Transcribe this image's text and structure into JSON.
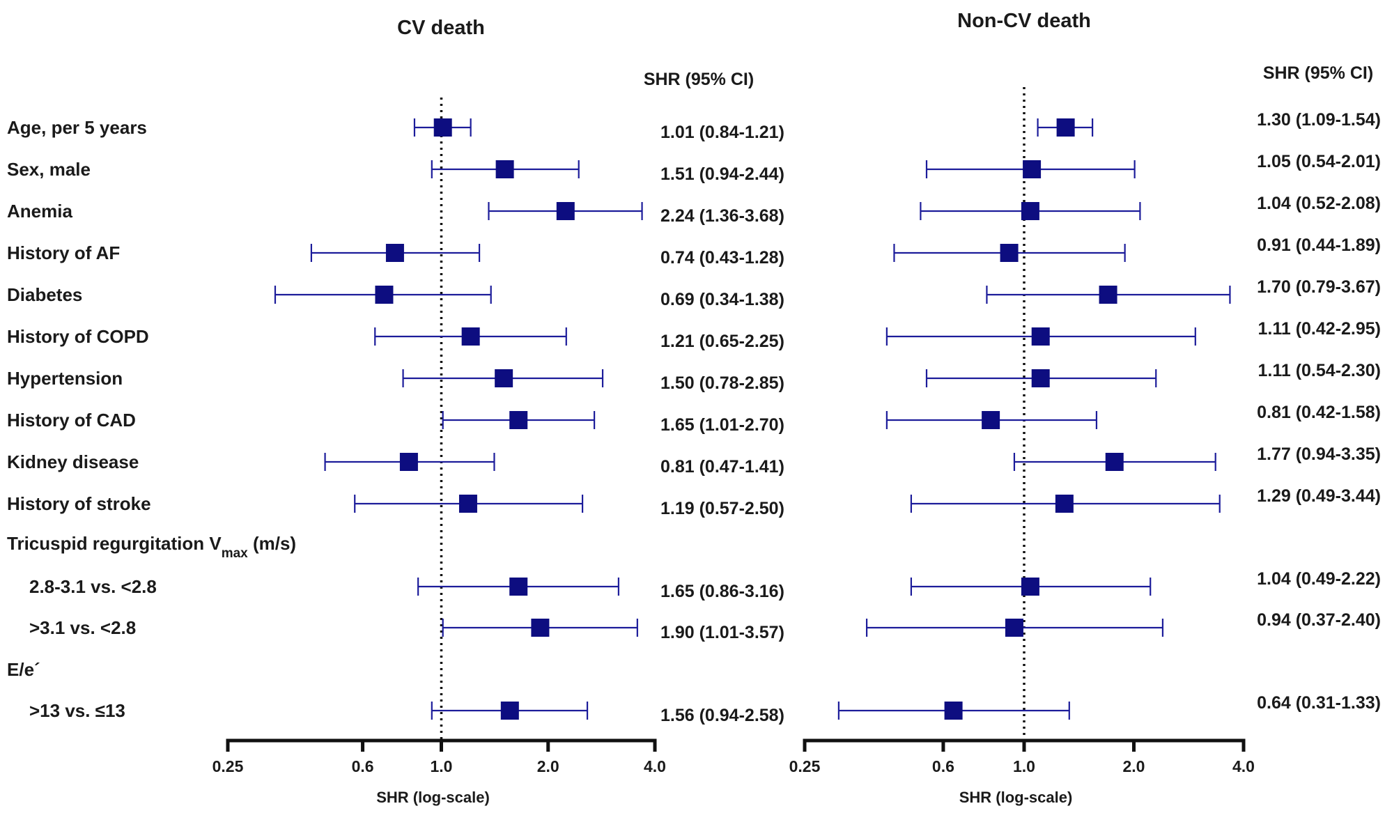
{
  "chart_data": [
    {
      "type": "forest",
      "title": "CV death",
      "column_header": "SHR (95% CI)",
      "xlabel": "SHR (log-scale)",
      "xscale": "log",
      "xlim": [
        0.25,
        4.0
      ],
      "xticks": [
        0.25,
        0.6,
        1.0,
        2.0,
        4.0
      ],
      "xtick_labels": [
        "0.25",
        "0.6",
        "1.0",
        "2.0",
        "4.0"
      ],
      "reference_line": 1.0,
      "rows": [
        {
          "estimate": 1.01,
          "lower": 0.84,
          "upper": 1.21,
          "text": "1.01 (0.84-1.21)"
        },
        {
          "estimate": 1.51,
          "lower": 0.94,
          "upper": 2.44,
          "text": "1.51 (0.94-2.44)"
        },
        {
          "estimate": 2.24,
          "lower": 1.36,
          "upper": 3.68,
          "text": "2.24 (1.36-3.68)"
        },
        {
          "estimate": 0.74,
          "lower": 0.43,
          "upper": 1.28,
          "text": "0.74 (0.43-1.28)"
        },
        {
          "estimate": 0.69,
          "lower": 0.34,
          "upper": 1.38,
          "text": "0.69 (0.34-1.38)"
        },
        {
          "estimate": 1.21,
          "lower": 0.65,
          "upper": 2.25,
          "text": "1.21 (0.65-2.25)"
        },
        {
          "estimate": 1.5,
          "lower": 0.78,
          "upper": 2.85,
          "text": "1.50 (0.78-2.85)"
        },
        {
          "estimate": 1.65,
          "lower": 1.01,
          "upper": 2.7,
          "text": "1.65 (1.01-2.70)"
        },
        {
          "estimate": 0.81,
          "lower": 0.47,
          "upper": 1.41,
          "text": "0.81 (0.47-1.41)"
        },
        {
          "estimate": 1.19,
          "lower": 0.57,
          "upper": 2.5,
          "text": "1.19 (0.57-2.50)"
        },
        null,
        {
          "estimate": 1.65,
          "lower": 0.86,
          "upper": 3.16,
          "text": "1.65 (0.86-3.16)"
        },
        {
          "estimate": 1.9,
          "lower": 1.01,
          "upper": 3.57,
          "text": "1.90 (1.01-3.57)"
        },
        null,
        {
          "estimate": 1.56,
          "lower": 0.94,
          "upper": 2.58,
          "text": "1.56 (0.94-2.58)"
        }
      ]
    },
    {
      "type": "forest",
      "title": "Non-CV death",
      "column_header": "SHR (95% CI)",
      "xlabel": "SHR (log-scale)",
      "xscale": "log",
      "xlim": [
        0.25,
        4.0
      ],
      "xticks": [
        0.25,
        0.6,
        1.0,
        2.0,
        4.0
      ],
      "xtick_labels": [
        "0.25",
        "0.6",
        "1.0",
        "2.0",
        "4.0"
      ],
      "reference_line": 1.0,
      "rows": [
        {
          "estimate": 1.3,
          "lower": 1.09,
          "upper": 1.54,
          "text": "1.30 (1.09-1.54)"
        },
        {
          "estimate": 1.05,
          "lower": 0.54,
          "upper": 2.01,
          "text": "1.05 (0.54-2.01)"
        },
        {
          "estimate": 1.04,
          "lower": 0.52,
          "upper": 2.08,
          "text": "1.04 (0.52-2.08)"
        },
        {
          "estimate": 0.91,
          "lower": 0.44,
          "upper": 1.89,
          "text": "0.91 (0.44-1.89)"
        },
        {
          "estimate": 1.7,
          "lower": 0.79,
          "upper": 3.67,
          "text": "1.70 (0.79-3.67)"
        },
        {
          "estimate": 1.11,
          "lower": 0.42,
          "upper": 2.95,
          "text": "1.11 (0.42-2.95)"
        },
        {
          "estimate": 1.11,
          "lower": 0.54,
          "upper": 2.3,
          "text": "1.11 (0.54-2.30)"
        },
        {
          "estimate": 0.81,
          "lower": 0.42,
          "upper": 1.58,
          "text": "0.81 (0.42-1.58)"
        },
        {
          "estimate": 1.77,
          "lower": 0.94,
          "upper": 3.35,
          "text": "1.77 (0.94-3.35)"
        },
        {
          "estimate": 1.29,
          "lower": 0.49,
          "upper": 3.44,
          "text": "1.29 (0.49-3.44)"
        },
        null,
        {
          "estimate": 1.04,
          "lower": 0.49,
          "upper": 2.22,
          "text": "1.04 (0.49-2.22)"
        },
        {
          "estimate": 0.94,
          "lower": 0.37,
          "upper": 2.4,
          "text": "0.94 (0.37-2.40)"
        },
        null,
        {
          "estimate": 0.64,
          "lower": 0.31,
          "upper": 1.33,
          "text": "0.64 (0.31-1.33)"
        }
      ]
    }
  ],
  "row_labels": [
    {
      "text": "Age, per 5 years",
      "indent": false
    },
    {
      "text": "Sex, male",
      "indent": false
    },
    {
      "text": "Anemia",
      "indent": false
    },
    {
      "text": "History of AF",
      "indent": false
    },
    {
      "text": "Diabetes",
      "indent": false
    },
    {
      "text": "History of COPD",
      "indent": false
    },
    {
      "text": "Hypertension",
      "indent": false
    },
    {
      "text": "History of CAD",
      "indent": false
    },
    {
      "text": "Kidney disease",
      "indent": false
    },
    {
      "text": "History of stroke",
      "indent": false
    },
    {
      "text": "Tricuspid regurgitation V",
      "sub": "max",
      "after": " (m/s)",
      "indent": false
    },
    {
      "text": "2.8-3.1 vs. <2.8",
      "indent": true
    },
    {
      "text": ">3.1 vs. <2.8",
      "indent": true
    },
    {
      "text": "E/e´",
      "indent": false
    },
    {
      "text": ">13 vs. ≤13",
      "indent": true
    }
  ],
  "colors": {
    "marker": "#0d0d80",
    "ci_line": "#1c1c9a",
    "axis": "#111111",
    "text": "#1a1a1a"
  }
}
